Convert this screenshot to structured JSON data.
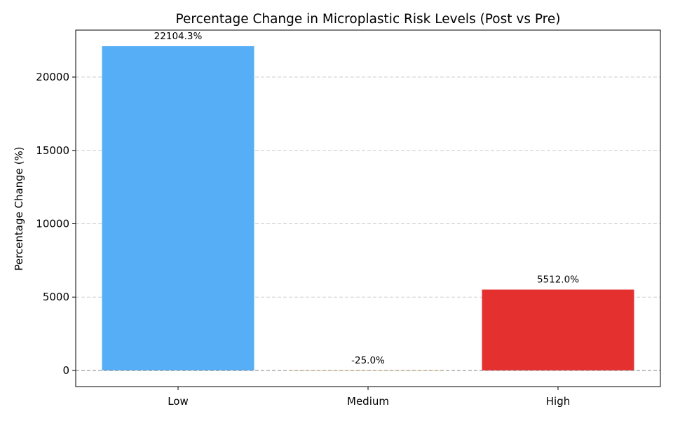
{
  "chart_data": {
    "type": "bar",
    "title": "Percentage Change in Microplastic Risk Levels (Post vs Pre)",
    "xlabel": "",
    "ylabel": "Percentage Change (%)",
    "categories": [
      "Low",
      "Medium",
      "High"
    ],
    "values": [
      22104.3,
      -25.0,
      5512.0
    ],
    "value_labels": [
      "22104.3%",
      "-25.0%",
      "5512.0%"
    ],
    "colors": [
      "#56AEF6",
      "#F7A600",
      "#E53030"
    ],
    "ylim": [
      -1100,
      23200
    ],
    "yticks": [
      0,
      5000,
      10000,
      15000,
      20000
    ],
    "ytick_labels": [
      "0",
      "5000",
      "10000",
      "15000",
      "20000"
    ],
    "grid": "y, dashed",
    "zero_line": "dashed gray"
  }
}
